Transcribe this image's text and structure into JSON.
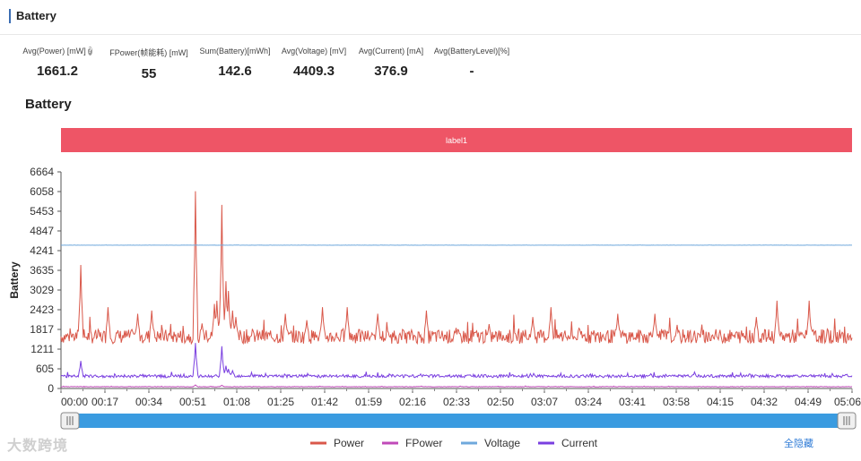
{
  "section": {
    "title": "Battery"
  },
  "stats": [
    {
      "label": "Avg(Power) [mW]",
      "value": "1661.2",
      "help": true
    },
    {
      "label": "FPower(帧能耗) [mW]",
      "value": "55"
    },
    {
      "label": "Sum(Battery)[mWh]",
      "value": "142.6"
    },
    {
      "label": "Avg(Voltage) [mV]",
      "value": "4409.3"
    },
    {
      "label": "Avg(Current) [mA]",
      "value": "376.9"
    },
    {
      "label": "Avg(BatteryLevel)[%]",
      "value": "-"
    }
  ],
  "help_icon": "question-icon",
  "watermark": "大数跨境",
  "hide_all_label": "全隐藏",
  "colors": {
    "power": "#d9584a",
    "fpower": "#c04ab8",
    "voltage": "#6fa8dc",
    "current": "#7a3fe0",
    "markband": "#ee5566",
    "slider": "#3a9be0"
  },
  "chart_data": {
    "type": "line",
    "title": "Battery",
    "ylabel": "Battery",
    "ylim": [
      0,
      6664
    ],
    "yticks": [
      0,
      605,
      1211,
      1817,
      2423,
      3029,
      3635,
      4241,
      4847,
      5453,
      6058,
      6664
    ],
    "xticks": [
      "00:00",
      "00:17",
      "00:34",
      "00:51",
      "01:08",
      "01:25",
      "01:42",
      "01:59",
      "02:16",
      "02:33",
      "02:50",
      "03:07",
      "03:24",
      "03:41",
      "03:58",
      "04:15",
      "04:32",
      "04:49",
      "05:06"
    ],
    "xlim_seconds": [
      0,
      306
    ],
    "mark_area": {
      "label": "label1"
    },
    "legend_position": "bottom",
    "series": [
      {
        "name": "Power",
        "color": "#d9584a",
        "baseline": 1600,
        "noise": 220,
        "spikes": [
          [
            24,
            3800
          ],
          [
            57,
            2500
          ],
          [
            93,
            2300
          ],
          [
            110,
            2400
          ],
          [
            163,
            6070
          ],
          [
            171,
            2000
          ],
          [
            186,
            2600
          ],
          [
            189,
            2700
          ],
          [
            194,
            3100
          ],
          [
            195,
            5650
          ],
          [
            200,
            3300
          ],
          [
            203,
            3000
          ],
          [
            208,
            2400
          ],
          [
            212,
            2200
          ],
          [
            272,
            2300
          ],
          [
            298,
            2100
          ],
          [
            317,
            2500
          ],
          [
            347,
            2500
          ],
          [
            384,
            2300
          ],
          [
            443,
            2400
          ],
          [
            572,
            2200
          ],
          [
            594,
            2500
          ],
          [
            675,
            2300
          ],
          [
            720,
            2300
          ],
          [
            843,
            2200
          ],
          [
            868,
            2700
          ],
          [
            907,
            2700
          ]
        ]
      },
      {
        "name": "FPower",
        "color": "#c04ab8",
        "baseline": 55,
        "noise": 8,
        "spikes": [
          [
            163,
            110
          ],
          [
            195,
            100
          ]
        ]
      },
      {
        "name": "Voltage",
        "color": "#6fa8dc",
        "baseline": 4409,
        "noise": 3,
        "spikes": []
      },
      {
        "name": "Current",
        "color": "#7a3fe0",
        "baseline": 380,
        "noise": 45,
        "spikes": [
          [
            24,
            850
          ],
          [
            163,
            1400
          ],
          [
            195,
            1300
          ],
          [
            200,
            700
          ],
          [
            203,
            600
          ],
          [
            208,
            550
          ]
        ]
      }
    ]
  }
}
